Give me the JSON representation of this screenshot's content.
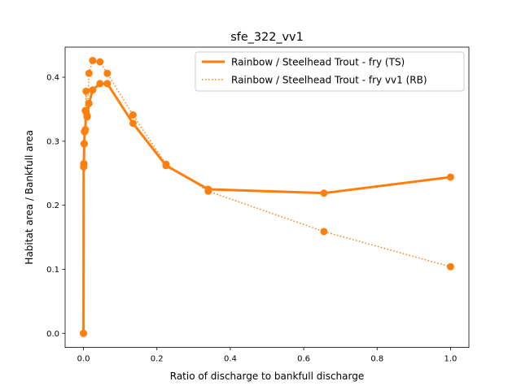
{
  "chart_data": {
    "type": "line",
    "title": "sfe_322_vv1",
    "xlabel": "Ratio of discharge to bankfull discharge",
    "ylabel": "Habitat area / Bankfull area",
    "xlim": [
      -0.05,
      1.05
    ],
    "ylim": [
      -0.022,
      0.447
    ],
    "xticks": [
      0.0,
      0.2,
      0.4,
      0.6,
      0.8,
      1.0
    ],
    "xtick_labels": [
      "0.0",
      "0.2",
      "0.4",
      "0.6",
      "0.8",
      "1.0"
    ],
    "yticks": [
      0.0,
      0.1,
      0.2,
      0.3,
      0.4
    ],
    "ytick_labels": [
      "0.0",
      "0.1",
      "0.2",
      "0.3",
      "0.4"
    ],
    "grid": false,
    "legend_position": "upper-right",
    "series": [
      {
        "name": "Rainbow / Steelhead Trout - fry (TS)",
        "style": "solid",
        "color": "#ff7f0e",
        "x": [
          0.0,
          0.0005,
          0.001,
          0.002,
          0.003,
          0.005,
          0.007,
          0.01,
          0.015,
          0.025,
          0.045,
          0.065,
          0.135,
          0.225,
          0.34,
          0.655,
          1.0
        ],
        "y": [
          0.0,
          0.26,
          0.265,
          0.296,
          0.315,
          0.318,
          0.346,
          0.338,
          0.359,
          0.38,
          0.39,
          0.39,
          0.328,
          0.262,
          0.225,
          0.219,
          0.244
        ]
      },
      {
        "name": "Rainbow / Steelhead Trout - fry vv1 (RB)",
        "style": "dotted",
        "color": "#ff7f0e",
        "x": [
          0.0,
          0.0005,
          0.001,
          0.002,
          0.003,
          0.005,
          0.007,
          0.01,
          0.015,
          0.025,
          0.045,
          0.065,
          0.135,
          0.225,
          0.34,
          0.655,
          1.0
        ],
        "y": [
          0.0,
          0.26,
          0.265,
          0.296,
          0.315,
          0.348,
          0.378,
          0.34,
          0.406,
          0.426,
          0.424,
          0.406,
          0.341,
          0.264,
          0.222,
          0.159,
          0.104
        ]
      }
    ]
  }
}
